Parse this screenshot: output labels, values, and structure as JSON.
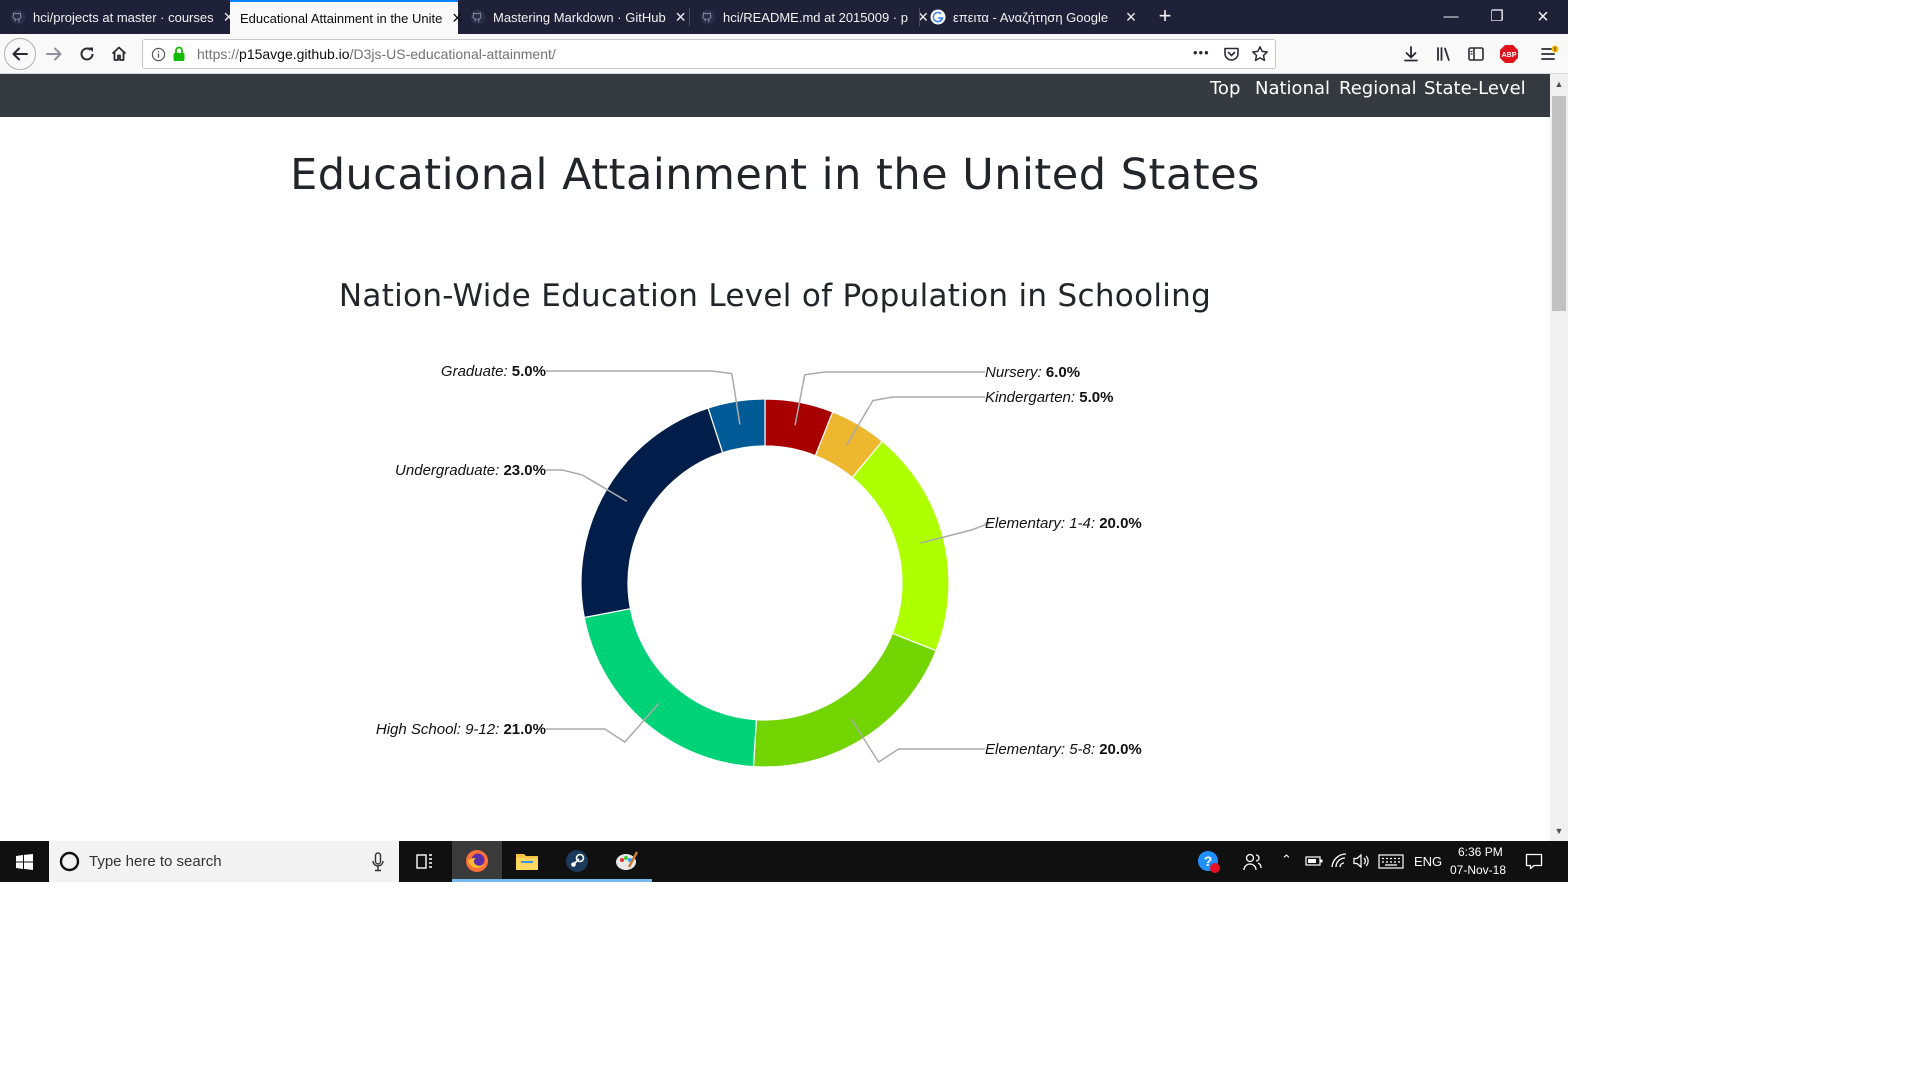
{
  "browser": {
    "tabs": [
      {
        "title": "hci/projects at master · courses",
        "icon": "github-icon",
        "active": false
      },
      {
        "title": "Educational Attainment in the Unite",
        "icon": "page-icon",
        "active": true
      },
      {
        "title": "Mastering Markdown · GitHub",
        "icon": "github-icon",
        "active": false
      },
      {
        "title": "hci/README.md at 2015009 · p",
        "icon": "github-icon",
        "active": false
      },
      {
        "title": "επειτα - Αναζήτηση Google",
        "icon": "google-icon",
        "active": false
      }
    ],
    "url_scheme": "https://",
    "url_host": "p15avge.github.io",
    "url_path": "/D3js-US-educational-attainment/",
    "url_dots": "•••"
  },
  "page": {
    "nav": [
      "Top",
      "National",
      "Regional",
      "State-Level"
    ],
    "title": "Educational Attainment in the United States",
    "chart_title": "Nation-Wide Education Level of Population in Schooling"
  },
  "chart_data": {
    "type": "pie",
    "donut": true,
    "title": "Nation-Wide Education Level of Population in Schooling",
    "slices": [
      {
        "label": "Nursery",
        "value": 6.0,
        "display": "6.0%",
        "color": "#a80000"
      },
      {
        "label": "Kindergarten",
        "value": 5.0,
        "display": "5.0%",
        "color": "#edb72f"
      },
      {
        "label": "Elementary: 1-4",
        "value": 20.0,
        "display": "20.0%",
        "color": "#aeff00"
      },
      {
        "label": "Elementary: 5-8",
        "value": 20.0,
        "display": "20.0%",
        "color": "#72d400"
      },
      {
        "label": "High School: 9-12",
        "value": 21.0,
        "display": "21.0%",
        "color": "#00d278"
      },
      {
        "label": "Undergraduate",
        "value": 23.0,
        "display": "23.0%",
        "color": "#001e49"
      },
      {
        "label": "Graduate",
        "value": 5.0,
        "display": "5.0%",
        "color": "#005a96"
      }
    ]
  },
  "taskbar": {
    "search_placeholder": "Type here to search",
    "language": "ENG",
    "time": "6:36 PM",
    "date": "07-Nov-18"
  }
}
